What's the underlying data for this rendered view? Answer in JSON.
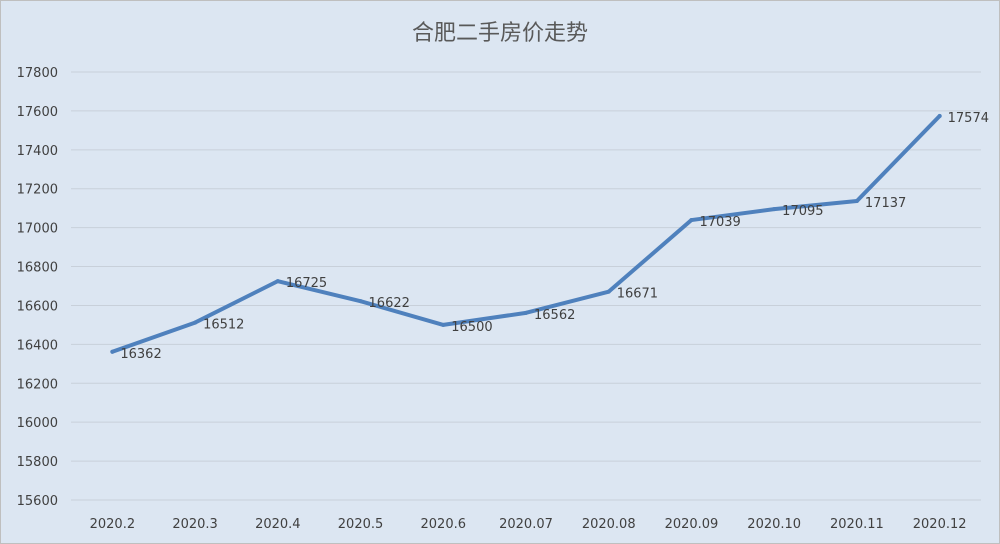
{
  "chart_data": {
    "type": "line",
    "title": "合肥二手房价走势",
    "xlabel": "",
    "ylabel": "",
    "categories": [
      "2020.2",
      "2020.3",
      "2020.4",
      "2020.5",
      "2020.6",
      "2020.07",
      "2020.08",
      "2020.09",
      "2020.10",
      "2020.11",
      "2020.12"
    ],
    "series": [
      {
        "values": [
          16362,
          16512,
          16725,
          16622,
          16500,
          16562,
          16671,
          17039,
          17095,
          17137,
          17574
        ],
        "data_labels": [
          "16362",
          "16512",
          "16725",
          "16622",
          "16500",
          "16562",
          "16671",
          "17039",
          "17095",
          "17137",
          "17574"
        ],
        "color": "#4f81bd"
      }
    ],
    "ylim": [
      15600,
      17800
    ],
    "yticks": [
      15600,
      15800,
      16000,
      16200,
      16400,
      16600,
      16800,
      17000,
      17200,
      17400,
      17600,
      17800
    ],
    "ytick_labels": [
      "15600",
      "15800",
      "16000",
      "16200",
      "16400",
      "16600",
      "16800",
      "17000",
      "17200",
      "17400",
      "17600",
      "17800"
    ],
    "grid": true,
    "legend": "none",
    "colors": {
      "background": "#dce6f2",
      "grid": "#c8d0da",
      "text": "#404040"
    }
  }
}
